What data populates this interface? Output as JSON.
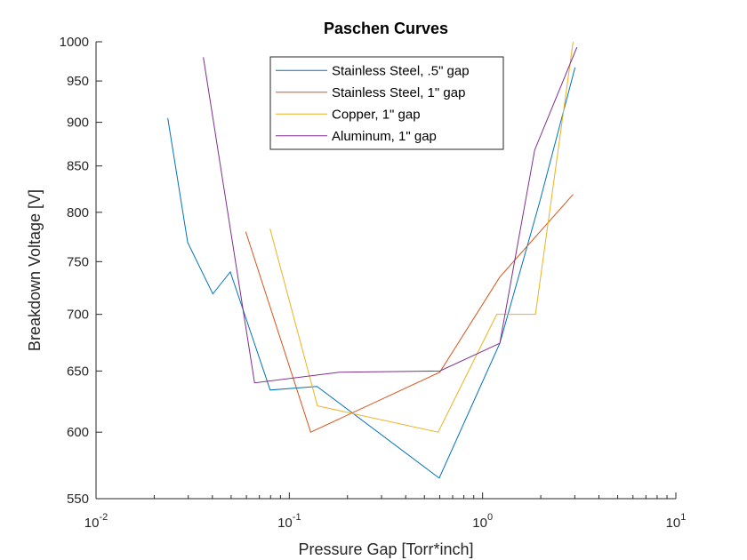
{
  "chart_data": {
    "type": "line",
    "title": "Paschen Curves",
    "xlabel": "Pressure Gap [Torr*inch]",
    "ylabel": "Breakdown Voltage [V]",
    "xscale": "log",
    "yscale": "log",
    "xlim": [
      0.01,
      10
    ],
    "ylim": [
      550,
      1000
    ],
    "x_ticks": [
      {
        "value": 0.01,
        "base": "10",
        "exp": "-2"
      },
      {
        "value": 0.1,
        "base": "10",
        "exp": "-1"
      },
      {
        "value": 1,
        "base": "10",
        "exp": "0"
      },
      {
        "value": 10,
        "base": "10",
        "exp": "1"
      }
    ],
    "y_ticks": [
      550,
      600,
      650,
      700,
      750,
      800,
      850,
      900,
      950,
      1000
    ],
    "grid": false,
    "legend_position": "top-center",
    "series": [
      {
        "name": "Stainless Steel, .5\" gap",
        "color": "#0072BD",
        "x": [
          0.0235,
          0.0298,
          0.0402,
          0.0495,
          0.0796,
          0.139,
          0.5965,
          1.2274,
          1.969,
          3.0082
        ],
        "y": [
          905,
          769,
          719,
          740,
          634,
          637,
          565,
          674,
          810,
          967
        ]
      },
      {
        "name": "Stainless Steel, 1\" gap",
        "color": "#D95319",
        "x": [
          0.0595,
          0.129,
          0.6008,
          1.2274,
          2.9399
        ],
        "y": [
          780,
          600,
          649,
          735,
          819
        ]
      },
      {
        "name": "Copper, 1\" gap",
        "color": "#EDB120",
        "x": [
          0.0795,
          0.1398,
          0.5887,
          1.184,
          1.8772,
          2.9399
        ],
        "y": [
          783,
          621,
          600,
          700,
          700,
          1000
        ]
      },
      {
        "name": "Aluminum, 1\" gap",
        "color": "#7E2F8E",
        "x": [
          0.0359,
          0.0661,
          0.1818,
          0.6008,
          1.2274,
          1.8604,
          3.078
        ],
        "y": [
          980,
          640,
          649,
          650,
          674,
          868,
          993
        ]
      }
    ]
  }
}
